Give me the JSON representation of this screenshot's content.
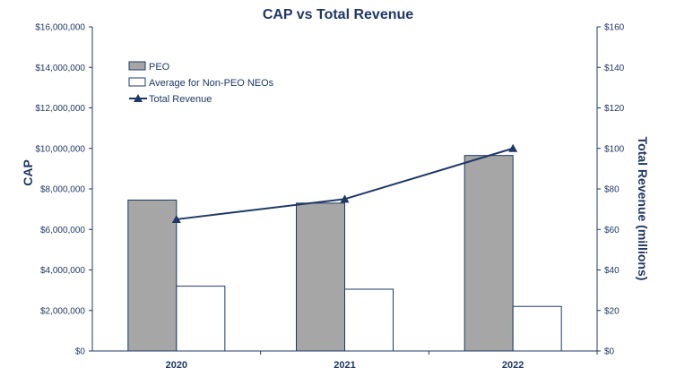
{
  "chart_data": {
    "type": "bar",
    "title": "CAP vs Total Revenue",
    "categories": [
      "2020",
      "2021",
      "2022"
    ],
    "ylabel": "CAP",
    "y2label": "Total Revenue (millions)",
    "ylim": [
      0,
      16000000
    ],
    "y2lim": [
      0,
      160
    ],
    "yticks": [
      "$0",
      "$2,000,000",
      "$4,000,000",
      "$6,000,000",
      "$8,000,000",
      "$10,000,000",
      "$12,000,000",
      "$14,000,000",
      "$16,000,000"
    ],
    "y2ticks": [
      "$0",
      "$20",
      "$40",
      "$60",
      "$80",
      "$100",
      "$120",
      "$140",
      "$160"
    ],
    "series": [
      {
        "name": "PEO",
        "kind": "bar",
        "axis": "left",
        "color": "#a6a6a6",
        "values": [
          7450000,
          7300000,
          9650000
        ]
      },
      {
        "name": "Average for Non-PEO NEOs",
        "kind": "bar",
        "axis": "left",
        "color": "#ffffff",
        "values": [
          3200000,
          3050000,
          2200000
        ]
      },
      {
        "name": "Total Revenue",
        "kind": "line",
        "axis": "right",
        "color": "#1f3864",
        "values": [
          65,
          75,
          100
        ]
      }
    ],
    "legend_position": "top-left",
    "grid": false
  }
}
